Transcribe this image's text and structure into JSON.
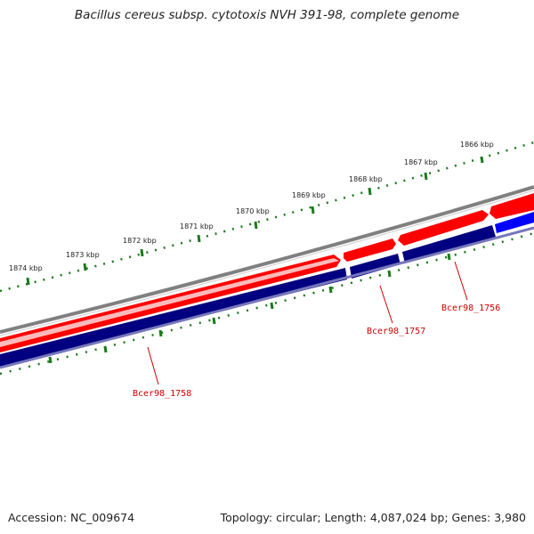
{
  "title": "Bacillus cereus subsp. cytotoxis NVH 391-98, complete genome",
  "footer": {
    "accession": "Accession: NC_009674",
    "summary": "Topology: circular; Length: 4,087,024 bp; Genes: 3,980"
  },
  "colors": {
    "backbone": "#808080",
    "forward_gene": "#ff0000",
    "reverse_gene": "#000080",
    "reverse_gene_highlight": "#0000ff",
    "tick": "#1a7a1a",
    "gene_label": "#cc0000",
    "leader_line": "#cc0000"
  },
  "scale": {
    "unit": "kbp",
    "ticks": [
      "1866 kbp",
      "1867 kbp",
      "1868 kbp",
      "1869 kbp",
      "1870 kbp",
      "1871 kbp",
      "1872 kbp",
      "1873 kbp",
      "1874 kbp"
    ]
  },
  "genes": [
    {
      "label": "Bcer98_1756",
      "strand": "reverse"
    },
    {
      "label": "Bcer98_1757",
      "strand": "reverse"
    },
    {
      "label": "Bcer98_1758",
      "strand": "reverse"
    }
  ]
}
